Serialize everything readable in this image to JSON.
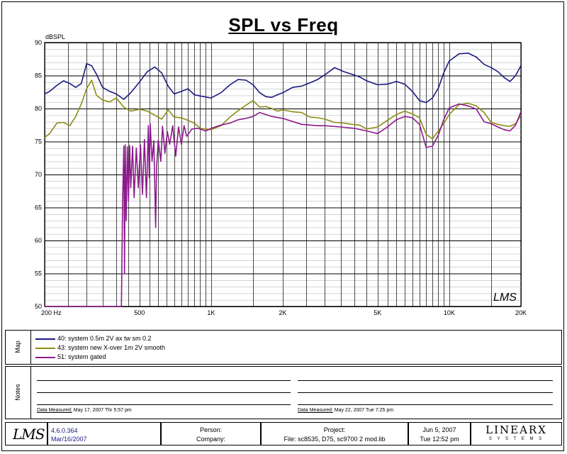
{
  "chart_data": {
    "type": "line",
    "title": "SPL vs Freq",
    "ylabel": "dBSPL",
    "xscale": "log",
    "xlim": [
      200,
      20000
    ],
    "ylim": [
      50,
      90
    ],
    "grid": true,
    "y_ticks": [
      "50",
      "55",
      "60",
      "65",
      "70",
      "75",
      "80",
      "85",
      "90"
    ],
    "x_ticks": [
      {
        "value": 200,
        "label": "200  Hz"
      },
      {
        "value": 500,
        "label": "500"
      },
      {
        "value": 1000,
        "label": "1K"
      },
      {
        "value": 2000,
        "label": "2K"
      },
      {
        "value": 5000,
        "label": "5K"
      },
      {
        "value": 10000,
        "label": "10K"
      },
      {
        "value": 20000,
        "label": "20K"
      }
    ],
    "series": [
      {
        "name": "40: system 0.5m 2V ax tw sm 0.2",
        "color": "#1a1a80",
        "x": [
          200,
          210,
          225,
          240,
          255,
          270,
          285,
          300,
          315,
          330,
          350,
          375,
          400,
          430,
          460,
          500,
          540,
          580,
          620,
          660,
          700,
          750,
          800,
          850,
          900,
          1000,
          1100,
          1200,
          1300,
          1400,
          1500,
          1600,
          1700,
          1800,
          1900,
          2000,
          2200,
          2400,
          2600,
          2800,
          3000,
          3300,
          3600,
          3900,
          4200,
          4500,
          5000,
          5500,
          6000,
          6500,
          7000,
          7500,
          8000,
          8500,
          9000,
          9500,
          10000,
          11000,
          12000,
          13000,
          14000,
          15000,
          16000,
          17000,
          18000,
          19000,
          20000
        ],
        "y": [
          82.2,
          82.6,
          83.5,
          84.2,
          83.8,
          83.2,
          83.8,
          86.8,
          86.5,
          85.2,
          83.2,
          82.6,
          82.2,
          81.4,
          82.4,
          84.0,
          85.6,
          86.3,
          85.4,
          83.4,
          82.2,
          82.6,
          83.0,
          82.1,
          81.9,
          81.6,
          82.4,
          83.6,
          84.4,
          84.3,
          83.6,
          82.4,
          81.8,
          81.7,
          82.1,
          82.4,
          83.2,
          83.4,
          83.9,
          84.4,
          85.1,
          86.2,
          85.6,
          85.2,
          84.8,
          84.2,
          83.6,
          83.7,
          84.1,
          83.7,
          82.6,
          81.2,
          80.9,
          81.6,
          83.1,
          85.5,
          87.2,
          88.3,
          88.4,
          87.8,
          86.7,
          86.2,
          85.6,
          84.7,
          84.1,
          85.0,
          86.5
        ]
      },
      {
        "name": "43: system new X-over 1m 2V smooth",
        "color": "#8c8c14",
        "x": [
          200,
          210,
          225,
          240,
          255,
          270,
          285,
          300,
          315,
          330,
          350,
          375,
          400,
          430,
          460,
          500,
          540,
          580,
          620,
          660,
          700,
          750,
          800,
          850,
          900,
          1000,
          1100,
          1200,
          1300,
          1400,
          1500,
          1600,
          1700,
          1800,
          1900,
          2000,
          2200,
          2400,
          2600,
          2800,
          3000,
          3300,
          3600,
          3900,
          4200,
          4500,
          5000,
          5500,
          6000,
          6500,
          7000,
          7500,
          8000,
          8500,
          9000,
          9500,
          10000,
          11000,
          12000,
          13000,
          14000,
          15000,
          16000,
          17000,
          18000,
          19000,
          20000
        ],
        "y": [
          75.6,
          76.2,
          77.8,
          77.9,
          77.4,
          78.8,
          80.7,
          83.0,
          84.3,
          82.0,
          81.3,
          81.0,
          81.6,
          80.2,
          79.6,
          79.9,
          79.6,
          79.0,
          78.4,
          79.8,
          78.7,
          78.6,
          78.2,
          77.8,
          77.0,
          76.8,
          77.4,
          78.7,
          79.7,
          80.5,
          81.2,
          80.2,
          80.3,
          80.0,
          79.6,
          79.8,
          79.5,
          79.4,
          78.7,
          78.6,
          78.4,
          77.9,
          77.8,
          77.6,
          77.5,
          76.9,
          77.2,
          78.2,
          79.1,
          79.6,
          79.2,
          78.6,
          76.1,
          75.4,
          76.6,
          77.8,
          79.1,
          80.6,
          80.8,
          80.4,
          79.4,
          77.9,
          77.6,
          77.4,
          77.3,
          77.7,
          79.0
        ]
      },
      {
        "name": "51: system gated",
        "color": "#8c1a8c",
        "x": [
          200,
          300,
          400,
          420,
          425,
          430,
          433,
          436,
          440,
          445,
          450,
          455,
          460,
          468,
          475,
          485,
          495,
          505,
          515,
          525,
          535,
          545,
          550,
          555,
          565,
          575,
          585,
          590,
          600,
          615,
          625,
          640,
          655,
          670,
          690,
          710,
          730,
          750,
          770,
          790,
          830,
          880,
          950,
          1000,
          1100,
          1200,
          1300,
          1400,
          1500,
          1600,
          1800,
          2000,
          2400,
          2800,
          3000,
          3500,
          4000,
          4500,
          5000,
          5500,
          6000,
          6500,
          7000,
          7500,
          8000,
          8500,
          9000,
          9500,
          10000,
          11000,
          12000,
          13000,
          14000,
          15000,
          16000,
          17000,
          18000,
          19000,
          20000
        ],
        "y": [
          50.0,
          50.0,
          50.0,
          50.0,
          66.0,
          74.3,
          55.0,
          74.5,
          63.0,
          74.2,
          66.0,
          74.4,
          68.0,
          74.3,
          66.5,
          74.0,
          68.0,
          74.5,
          67.0,
          75.3,
          66.5,
          77.4,
          69.5,
          77.7,
          72.0,
          75.1,
          62.0,
          71.0,
          75.2,
          72.0,
          77.3,
          73.2,
          76.5,
          74.6,
          77.4,
          72.8,
          77.2,
          74.6,
          77.4,
          75.8,
          76.9,
          77.0,
          76.6,
          77.0,
          77.5,
          77.8,
          78.3,
          78.5,
          78.8,
          79.4,
          78.8,
          78.5,
          77.6,
          77.4,
          77.4,
          77.2,
          77.0,
          76.6,
          76.2,
          77.2,
          78.3,
          78.8,
          78.6,
          77.6,
          74.1,
          74.3,
          76.0,
          78.4,
          80.1,
          80.7,
          80.4,
          79.9,
          78.0,
          77.7,
          77.2,
          76.8,
          76.6,
          77.5,
          79.5
        ]
      }
    ]
  },
  "watermark_logo": "LMS",
  "map_section": {
    "side_label": "Map",
    "legend_swatch_colors": [
      "#1a1a80",
      "#8c8c14",
      "#8c1a8c"
    ]
  },
  "notes_section": {
    "side_label": "Notes",
    "left_measured_label": "Data Measured:",
    "left_measured_value": "May 17, 2007   Thr  5:57 pm",
    "right_measured_label": "Data Measured:",
    "right_measured_value": "May 22, 2007   Tue  7:25 pm"
  },
  "footer": {
    "logo": "LMS",
    "version": "4.6.0.364",
    "version_date": "Mar/16/2007",
    "person_label": "Person:",
    "company_label": "Company:",
    "project_label": "Project:",
    "file_text": "File: sc8535, D75, sc9700 2 mod.lib",
    "date": "Jun  5, 2007",
    "time": "Tue 12:52 pm",
    "brand_main": "LINEARX",
    "brand_sub": "S Y S T E M S",
    "brand_color": "#1a1a80"
  }
}
